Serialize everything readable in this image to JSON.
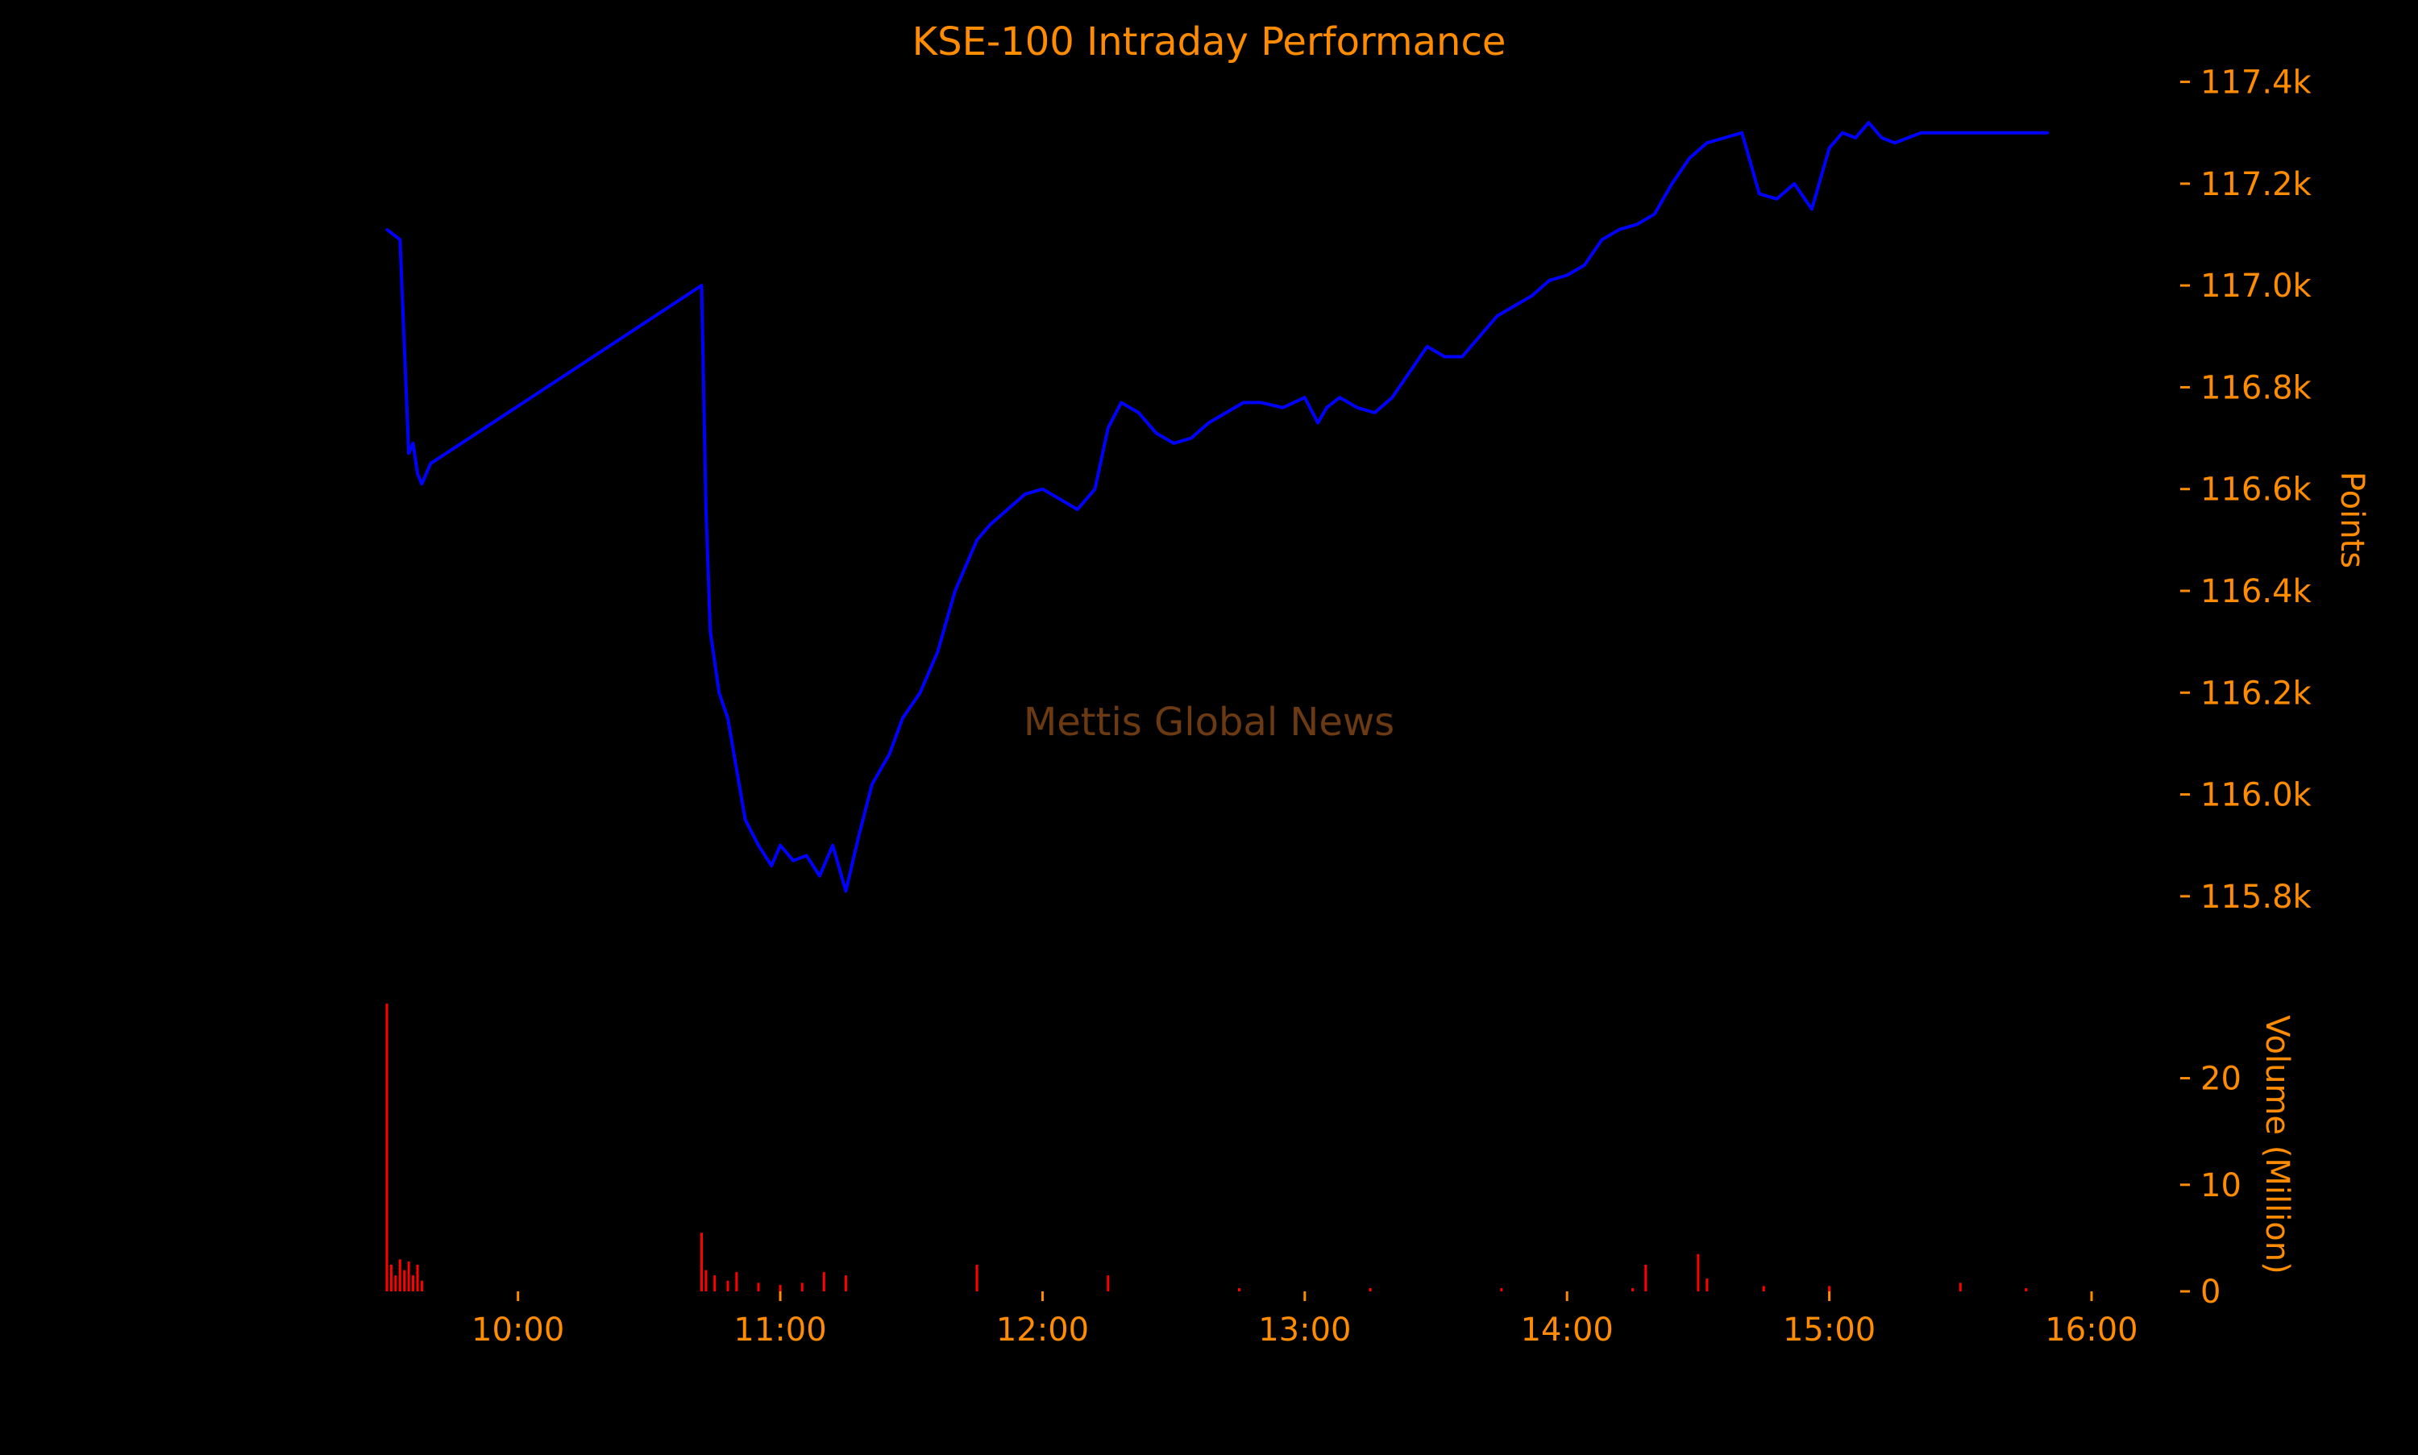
{
  "colors": {
    "background": "#000000",
    "text": "#ff8c00",
    "price_line": "#0000ff",
    "volume_bars": "#ff0000",
    "watermark": "#6b3a12"
  },
  "chart_data": {
    "title": "KSE-100 Intraday Performance",
    "watermark": "Mettis Global News",
    "price": {
      "type": "line",
      "ylabel": "Points",
      "ylim": [
        115700,
        117450
      ],
      "yticks": [
        115800,
        116000,
        116200,
        116400,
        116600,
        116800,
        117000,
        117200,
        117400
      ],
      "ytick_labels": [
        "115.8k",
        "116.0k",
        "116.2k",
        "116.4k",
        "116.6k",
        "116.8k",
        "117.0k",
        "117.2k",
        "117.4k"
      ],
      "series": [
        {
          "x": [
            "09:30",
            "09:33",
            "09:34",
            "09:35",
            "09:36",
            "09:37",
            "09:38",
            "09:40",
            "10:42",
            "10:43",
            "10:44",
            "10:46",
            "10:48",
            "10:50",
            "10:52",
            "10:55",
            "10:58",
            "11:00",
            "11:03",
            "11:06",
            "11:09",
            "11:12",
            "11:15",
            "11:18",
            "11:21",
            "11:25",
            "11:28",
            "11:32",
            "11:36",
            "11:40",
            "11:45",
            "11:48",
            "11:52",
            "11:56",
            "12:00",
            "12:04",
            "12:08",
            "12:12",
            "12:15",
            "12:18",
            "12:22",
            "12:26",
            "12:30",
            "12:34",
            "12:38",
            "12:42",
            "12:46",
            "12:50",
            "12:55",
            "13:00",
            "13:03",
            "13:05",
            "13:08",
            "13:12",
            "13:16",
            "13:20",
            "13:24",
            "13:28",
            "13:32",
            "13:36",
            "13:40",
            "13:44",
            "13:48",
            "13:52",
            "13:56",
            "14:00",
            "14:04",
            "14:08",
            "14:12",
            "14:16",
            "14:20",
            "14:24",
            "14:28",
            "14:32",
            "14:36",
            "14:40",
            "14:44",
            "14:48",
            "14:52",
            "14:56",
            "15:00",
            "15:03",
            "15:06",
            "15:09",
            "15:12",
            "15:15",
            "15:18",
            "15:21",
            "15:24",
            "15:27",
            "15:30",
            "15:35",
            "15:40",
            "15:45",
            "15:50"
          ],
          "values": [
            117110,
            117090,
            116880,
            116670,
            116690,
            116630,
            116610,
            116650,
            117000,
            116560,
            116320,
            116200,
            116150,
            116050,
            115950,
            115900,
            115860,
            115900,
            115870,
            115880,
            115840,
            115900,
            115810,
            115920,
            116020,
            116080,
            116150,
            116200,
            116280,
            116400,
            116500,
            116530,
            116560,
            116590,
            116600,
            116580,
            116560,
            116600,
            116720,
            116770,
            116750,
            116710,
            116690,
            116700,
            116730,
            116750,
            116770,
            116770,
            116760,
            116780,
            116730,
            116760,
            116780,
            116760,
            116750,
            116780,
            116830,
            116880,
            116860,
            116860,
            116900,
            116940,
            116960,
            116980,
            117010,
            117020,
            117040,
            117090,
            117110,
            117120,
            117140,
            117200,
            117250,
            117280,
            117290,
            117300,
            117180,
            117170,
            117200,
            117150,
            117270,
            117300,
            117290,
            117320,
            117290,
            117280,
            117290,
            117300,
            117300,
            117300,
            117300,
            117300,
            117300,
            117300,
            117300
          ]
        }
      ]
    },
    "volume": {
      "type": "bar",
      "ylabel": "Volume (Million)",
      "ylim": [
        0,
        27
      ],
      "yticks": [
        0,
        10,
        20
      ],
      "ytick_labels": [
        "0",
        "10",
        "20"
      ],
      "series": [
        {
          "x": [
            "09:30",
            "09:31",
            "09:32",
            "09:33",
            "09:34",
            "09:35",
            "09:36",
            "09:37",
            "09:38",
            "10:42",
            "10:43",
            "10:45",
            "10:48",
            "10:50",
            "10:55",
            "11:00",
            "11:05",
            "11:10",
            "11:15",
            "11:45",
            "12:15",
            "12:45",
            "13:15",
            "13:45",
            "14:15",
            "14:18",
            "14:30",
            "14:32",
            "14:45",
            "15:00",
            "15:30",
            "15:45"
          ],
          "values": [
            27,
            2.5,
            1.5,
            3,
            2,
            2.8,
            1.5,
            2.5,
            1,
            5.5,
            2,
            1.5,
            1,
            1.8,
            0.8,
            0.6,
            0.8,
            1.8,
            1.5,
            2.5,
            1.5,
            0.3,
            0.3,
            0.3,
            0.3,
            2.5,
            3.5,
            1.2,
            0.5,
            0.5,
            0.8,
            0.3
          ]
        }
      ]
    },
    "xlim": [
      "09:30",
      "16:00"
    ],
    "xticks": [
      "10:00",
      "11:00",
      "12:00",
      "13:00",
      "14:00",
      "15:00",
      "16:00"
    ],
    "grid": false,
    "legend": "none"
  }
}
